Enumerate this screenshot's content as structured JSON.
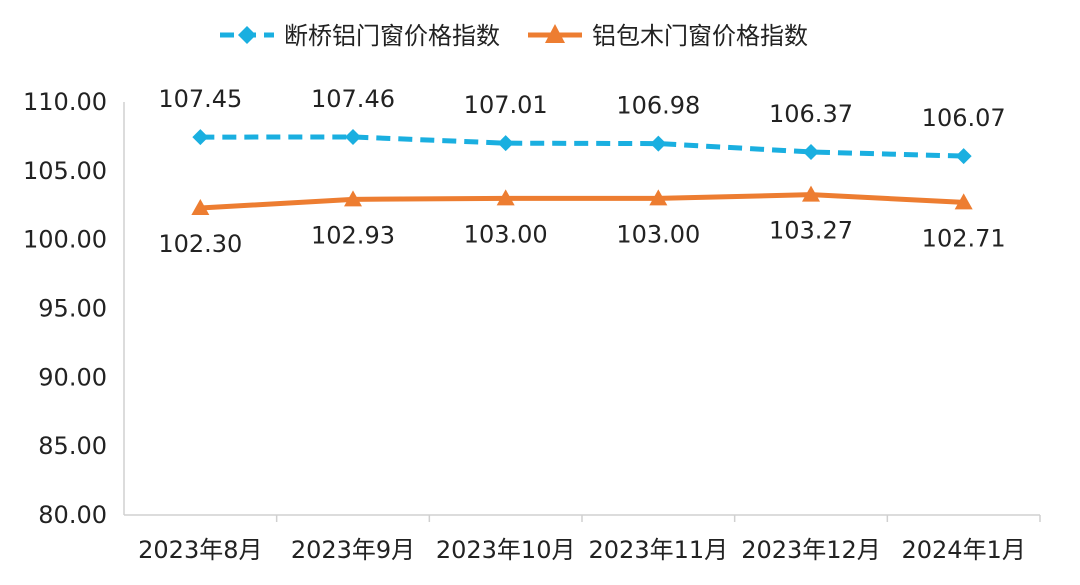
{
  "chart_data": {
    "type": "line",
    "categories": [
      "2023年8月",
      "2023年9月",
      "2023年10月",
      "2023年11月",
      "2023年12月",
      "2024年1月"
    ],
    "series": [
      {
        "name": "断桥铝门窗价格指数",
        "values": [
          107.45,
          107.46,
          107.01,
          106.98,
          106.37,
          106.07
        ],
        "labels": [
          "107.45",
          "107.46",
          "107.01",
          "106.98",
          "106.37",
          "106.07"
        ],
        "color": "#1AAFE0",
        "line_style": "dashed",
        "marker": "diamond"
      },
      {
        "name": "铝包木门窗价格指数",
        "values": [
          102.3,
          102.93,
          103.0,
          103.0,
          103.27,
          102.71
        ],
        "labels": [
          "102.30",
          "102.93",
          "103.00",
          "103.00",
          "103.27",
          "102.71"
        ],
        "color": "#ED7D31",
        "line_style": "solid",
        "marker": "triangle"
      }
    ],
    "ylim": [
      80,
      110
    ],
    "yticks": [
      80,
      85,
      90,
      95,
      100,
      105,
      110
    ],
    "ytick_labels": [
      "80.00",
      "85.00",
      "90.00",
      "95.00",
      "100.00",
      "105.00",
      "110.00"
    ],
    "title": "",
    "xlabel": "",
    "ylabel": "",
    "legend": "top",
    "grid": false
  }
}
